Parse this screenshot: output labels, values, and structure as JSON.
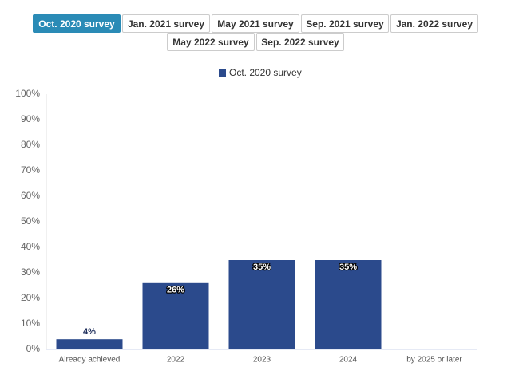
{
  "tabs": {
    "items": [
      "Oct. 2020 survey",
      "Jan. 2021 survey",
      "May 2021 survey",
      "Sep. 2021 survey",
      "Jan. 2022 survey",
      "May 2022 survey",
      "Sep. 2022 survey"
    ],
    "active": 0
  },
  "chart_data": {
    "type": "bar",
    "categories": [
      "Already achieved",
      "2022",
      "2023",
      "2024",
      "by 2025 or later"
    ],
    "series": [
      {
        "name": "Oct. 2020 survey",
        "color": "#2b4a8c",
        "values": [
          4,
          26,
          35,
          35,
          null
        ],
        "value_labels": [
          "4%",
          "26%",
          "35%",
          "35%",
          null
        ]
      }
    ],
    "ylim": [
      0,
      100
    ],
    "yticks": [
      {
        "value": 0,
        "label": "0%"
      },
      {
        "value": 10,
        "label": "10%"
      },
      {
        "value": 20,
        "label": "20%"
      },
      {
        "value": 30,
        "label": "30%"
      },
      {
        "value": 40,
        "label": "40%"
      },
      {
        "value": 50,
        "label": "50%"
      },
      {
        "value": 60,
        "label": "60%"
      },
      {
        "value": 70,
        "label": "70%"
      },
      {
        "value": 80,
        "label": "80%"
      },
      {
        "value": 90,
        "label": "90%"
      },
      {
        "value": 100,
        "label": "100%"
      }
    ],
    "grid": false
  }
}
